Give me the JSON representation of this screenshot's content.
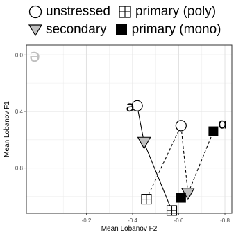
{
  "chart_data": {
    "type": "scatter",
    "panel_label": "ə",
    "xlabel": "Mean Lobanov F2",
    "ylabel": "Mean Lobanov F1",
    "x_reversed": true,
    "y_reversed": true,
    "xlim": [
      0.06,
      -0.83
    ],
    "ylim": [
      -0.07,
      1.12
    ],
    "x_ticks": [
      -0.2,
      -0.4,
      -0.6,
      -0.8
    ],
    "x_tick_labels": [
      "-0.2",
      "-0.4",
      "-0.6",
      "-0.8"
    ],
    "y_ticks": [
      0.0,
      0.4,
      0.8
    ],
    "y_tick_labels": [
      "0.0",
      "0.4",
      "0.8"
    ],
    "grid": true,
    "legend_position": "top",
    "colors": {
      "marker_outline": "#000000",
      "secondary_fill": "#c0c0c0",
      "primary_mono_fill": "#000000",
      "grid": "#ececec",
      "panel_border": "#333333",
      "tick_text": "#4d4d4d",
      "panel_label": "#bfbfbf"
    },
    "series": [
      {
        "name": "unstressed",
        "shape": "circle-open",
        "points": [
          [
            -0.42,
            0.36
          ],
          [
            -0.61,
            0.5
          ]
        ]
      },
      {
        "name": "secondary",
        "shape": "triangle-down-filled",
        "points": [
          [
            -0.45,
            0.62
          ],
          [
            -0.64,
            0.98
          ]
        ]
      },
      {
        "name": "primary (poly)",
        "shape": "square-crossed",
        "points": [
          [
            -0.46,
            1.02
          ],
          [
            -0.57,
            1.1
          ]
        ]
      },
      {
        "name": "primary (mono)",
        "shape": "square-filled",
        "points": [
          [
            -0.61,
            1.01
          ],
          [
            -0.75,
            0.54
          ]
        ]
      }
    ],
    "paths": [
      {
        "style": "solid",
        "points": [
          [
            -0.42,
            0.36
          ],
          [
            -0.45,
            0.62
          ],
          [
            -0.57,
            1.1
          ]
        ]
      },
      {
        "style": "dashed",
        "points": [
          [
            -0.46,
            1.02
          ],
          [
            -0.61,
            0.5
          ],
          [
            -0.64,
            0.98
          ]
        ]
      },
      {
        "style": "dashed",
        "points": [
          [
            -0.64,
            0.98
          ],
          [
            -0.75,
            0.54
          ]
        ]
      },
      {
        "style": "dashed",
        "points": [
          [
            -0.61,
            1.01
          ],
          [
            -0.64,
            0.98
          ]
        ]
      }
    ],
    "annotations": [
      {
        "text": "a",
        "x": -0.39,
        "y": 0.4
      },
      {
        "text": "ɑ",
        "x": -0.79,
        "y": 0.52
      }
    ]
  }
}
